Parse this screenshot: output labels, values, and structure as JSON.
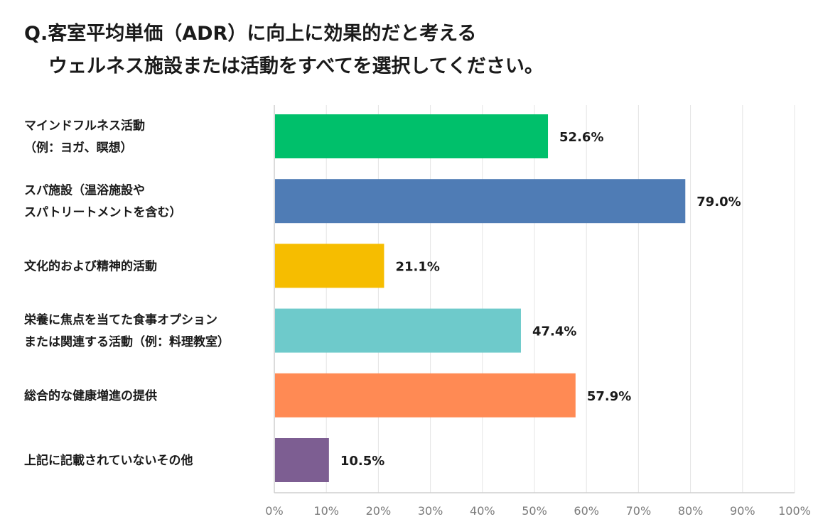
{
  "title": {
    "line1": "Q.客室平均単価（ADR）に向上に効果的だと考える",
    "line2": "ウェルネス施設または活動をすべてを選択してください。"
  },
  "chart_data": {
    "type": "bar",
    "orientation": "horizontal",
    "title": "Q.客室平均単価（ADR）に向上に効果的だと考える ウェルネス施設または活動をすべてを選択してください。",
    "xlabel": "",
    "ylabel": "",
    "xlim": [
      0,
      100
    ],
    "grid": true,
    "ticks": [
      "0%",
      "10%",
      "20%",
      "30%",
      "40%",
      "50%",
      "60%",
      "70%",
      "80%",
      "90%",
      "100%"
    ],
    "categories": [
      [
        "マインドフルネス活動",
        "（例：ヨガ、瞑想）"
      ],
      [
        "スパ施設（温浴施設や",
        "スパトリートメントを含む）"
      ],
      [
        "文化的および精神的活動"
      ],
      [
        "栄養に焦点を当てた食事オプション",
        "または関連する活動（例：料理教室）"
      ],
      [
        "総合的な健康増進の提供"
      ],
      [
        "上記に記載されていないその他"
      ]
    ],
    "values": [
      52.6,
      79.0,
      21.1,
      47.4,
      57.9,
      10.5
    ],
    "value_labels": [
      "52.6%",
      "79.0%",
      "21.1%",
      "47.4%",
      "57.9%",
      "10.5%"
    ],
    "colors": [
      "#00c06b",
      "#4f7cb5",
      "#f6bd00",
      "#6ecacb",
      "#ff8a54",
      "#7d5e92"
    ]
  }
}
